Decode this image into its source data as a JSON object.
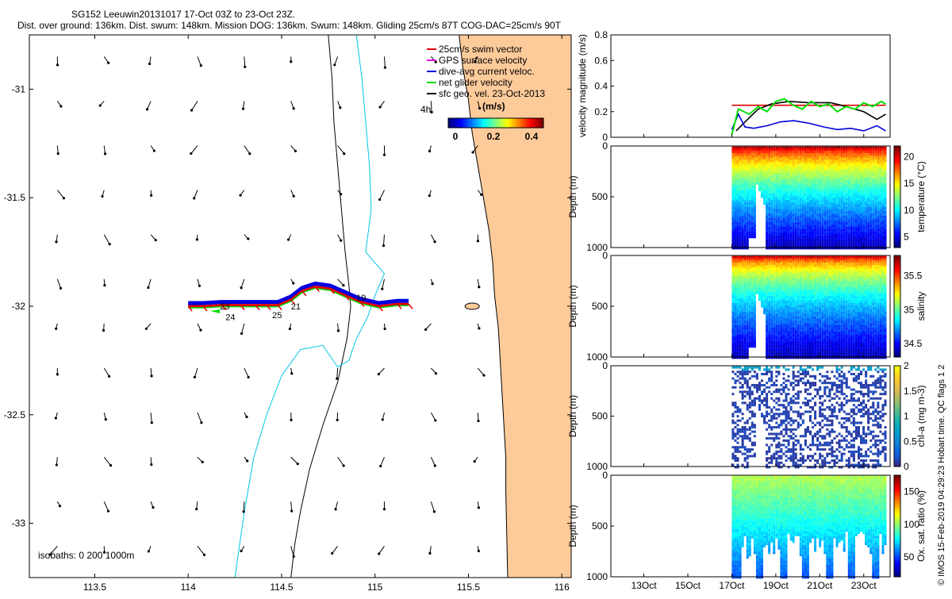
{
  "header": {
    "title": "SG152 Leeuwin20131017 17-Oct 03Z to 23-Oct 23Z.",
    "subtitle": "Dist. over ground: 136km. Dist. swum: 148km. Mission DOG: 136km. Swum: 148km. Gliding 25cm/s 87T COG-DAC=25cm/s 90T"
  },
  "colors": {
    "land": "#FDCA9A",
    "isobath_200": "#00C8E6",
    "isobath_1000": "#000000",
    "swim_vector": "#E00000",
    "gps_velocity": "#E000E0",
    "dac": "#0000E0",
    "net_velocity": "#00E000"
  },
  "chart_data": [
    {
      "type": "map",
      "xlim": [
        113.15,
        116.05
      ],
      "ylim": [
        -33.25,
        -30.75
      ],
      "xticks": [
        "113.5",
        "114",
        "114.5",
        "115",
        "115.5",
        "116"
      ],
      "xtick_values": [
        113.5,
        114,
        114.5,
        115,
        115.5,
        116
      ],
      "yticks": [
        "-31",
        "-31.5",
        "-32",
        "-32.5",
        "-33"
      ],
      "ytick_values": [
        -31,
        -31.5,
        -32,
        -32.5,
        -33
      ],
      "legend": {
        "placement": "top-right",
        "entries": [
          {
            "label": "25cm/s swim vector",
            "color": "#E00000"
          },
          {
            "label": "GPS surface velocity",
            "color": "#E000E0"
          },
          {
            "label": "dive-avg current veloc.",
            "color": "#0000E0"
          },
          {
            "label": "net glider velocity",
            "color": "#00E000"
          },
          {
            "label": "sfc geo. vel. 23-Oct-2013",
            "color": "#000000"
          }
        ]
      },
      "colorbar": {
        "title": "(m/s)",
        "ticks": [
          "0",
          "0.2",
          "0.4"
        ],
        "range": [
          0,
          0.5
        ]
      },
      "time_label": "4h",
      "isobath_note": "isobaths: 0   200  1000m",
      "track": {
        "lon": [
          115.18,
          115.12,
          115.02,
          114.92,
          114.84,
          114.76,
          114.68,
          114.61,
          114.55,
          114.48,
          114.42,
          114.36,
          114.28,
          114.18,
          114.08,
          114.0
        ],
        "lat": [
          -31.99,
          -31.99,
          -32.0,
          -31.98,
          -31.95,
          -31.92,
          -31.91,
          -31.93,
          -31.97,
          -31.995,
          -31.995,
          -31.995,
          -31.995,
          -31.995,
          -32.0,
          -32.0
        ],
        "day_labels": [
          {
            "text": "19",
            "lon": 114.9,
            "lat": -31.96
          },
          {
            "text": "21",
            "lon": 114.55,
            "lat": -32.0
          },
          {
            "text": "25",
            "lon": 114.45,
            "lat": -32.04
          },
          {
            "text": "24",
            "lon": 114.2,
            "lat": -32.05
          },
          {
            "text": "23",
            "lon": 114.17,
            "lat": -32.0
          }
        ]
      },
      "coastline": {
        "lon": [
          115.45,
          115.47,
          115.5,
          115.52,
          115.55,
          115.58,
          115.61,
          115.63,
          115.64,
          115.66,
          115.67,
          115.68,
          115.69,
          115.7,
          115.7,
          115.71
        ],
        "lat": [
          -30.75,
          -30.9,
          -31.05,
          -31.2,
          -31.35,
          -31.5,
          -31.65,
          -31.8,
          -31.95,
          -32.1,
          -32.25,
          -32.4,
          -32.55,
          -32.7,
          -32.85,
          -33.25
        ]
      },
      "isobath_200m": {
        "lon": [
          114.9,
          114.93,
          114.95,
          114.97,
          114.98,
          114.95,
          115.05,
          115.0,
          114.96,
          114.9,
          114.86,
          114.8,
          114.72,
          114.6,
          114.5,
          114.42,
          114.35,
          114.3,
          114.25
        ],
        "lat": [
          -30.75,
          -30.95,
          -31.15,
          -31.35,
          -31.55,
          -31.75,
          -31.85,
          -31.95,
          -32.05,
          -32.15,
          -32.25,
          -32.28,
          -32.18,
          -32.2,
          -32.32,
          -32.5,
          -32.7,
          -32.95,
          -33.25
        ]
      },
      "isobath_1000m": {
        "lon": [
          114.75,
          114.77,
          114.78,
          114.8,
          114.82,
          114.84,
          114.86,
          114.87,
          114.85,
          114.8,
          114.72,
          114.65,
          114.6,
          114.57,
          114.55
        ],
        "lat": [
          -30.75,
          -30.95,
          -31.15,
          -31.35,
          -31.55,
          -31.75,
          -31.9,
          -32.0,
          -32.15,
          -32.35,
          -32.55,
          -32.75,
          -32.95,
          -33.1,
          -33.25
        ]
      }
    },
    {
      "type": "line",
      "ylabel": "velocity magnitude (m/s)",
      "ylim": [
        0,
        0.8
      ],
      "yticks": [
        "0",
        "0.2",
        "0.4",
        "0.6",
        "0.8"
      ],
      "xlim": [
        11.5,
        24.2
      ],
      "series": [
        {
          "color": "#E00000",
          "x": [
            17.0,
            24.0
          ],
          "y": [
            0.25,
            0.25
          ]
        },
        {
          "color": "#000000",
          "x": [
            17.2,
            17.6,
            18.2,
            18.8,
            19.6,
            20.5,
            21.5,
            22.2,
            23.0,
            23.6,
            24.0
          ],
          "y": [
            0.05,
            0.12,
            0.22,
            0.26,
            0.28,
            0.27,
            0.27,
            0.24,
            0.2,
            0.14,
            0.18
          ]
        },
        {
          "color": "#0000E0",
          "x": [
            17.0,
            17.3,
            17.6,
            18.0,
            18.6,
            19.2,
            19.8,
            20.5,
            21.2,
            21.8,
            22.4,
            23.0,
            23.6,
            24.0
          ],
          "y": [
            0.06,
            0.18,
            0.08,
            0.07,
            0.09,
            0.12,
            0.13,
            0.11,
            0.08,
            0.06,
            0.07,
            0.05,
            0.09,
            0.05
          ]
        },
        {
          "color": "#00E000",
          "x": [
            17.0,
            17.3,
            17.8,
            18.2,
            18.6,
            19.0,
            19.4,
            19.8,
            20.2,
            20.6,
            21.0,
            21.4,
            21.8,
            22.2,
            22.6,
            23.0,
            23.4,
            23.8,
            24.0
          ],
          "y": [
            0.02,
            0.22,
            0.18,
            0.24,
            0.2,
            0.28,
            0.3,
            0.25,
            0.22,
            0.28,
            0.24,
            0.26,
            0.2,
            0.24,
            0.22,
            0.27,
            0.24,
            0.28,
            0.26
          ]
        }
      ]
    },
    {
      "type": "heatmap",
      "variable": "temperature",
      "ylabel": "Depth (m)",
      "ylim": [
        1000,
        0
      ],
      "yticks": [
        "0",
        "500",
        "1000"
      ],
      "colorbar_label": "temperature (°C)",
      "colorbar_ticks": [
        "5",
        "10",
        "15",
        "20"
      ],
      "crange": [
        3,
        22
      ]
    },
    {
      "type": "heatmap",
      "variable": "salinity",
      "ylabel": "Depth (m)",
      "ylim": [
        1000,
        0
      ],
      "yticks": [
        "0",
        "500",
        "1000"
      ],
      "colorbar_label": "salinity",
      "colorbar_ticks": [
        "34.5",
        "35",
        "35.5"
      ],
      "crange": [
        34.3,
        35.8
      ]
    },
    {
      "type": "scatter",
      "variable": "chl-a",
      "ylabel": "Depth (m)",
      "ylim": [
        1000,
        0
      ],
      "yticks": [
        "0",
        "500",
        "1000"
      ],
      "colorbar_label": "chl-a (mg m-3)",
      "colorbar_ticks": [
        "0",
        "0.5",
        "1",
        "1.5",
        "2"
      ],
      "crange": [
        0,
        2
      ]
    },
    {
      "type": "heatmap",
      "variable": "Ox. sat. ratio",
      "ylabel": "Depth (m)",
      "ylim": [
        1000,
        0
      ],
      "yticks": [
        "0",
        "500",
        "1000"
      ],
      "colorbar_label": "Ox. sat. ratio (%)",
      "colorbar_ticks": [
        "50",
        "100",
        "150"
      ],
      "crange": [
        20,
        175
      ],
      "xticks": [
        "13Oct",
        "15Oct",
        "17Oct",
        "19Oct",
        "21Oct",
        "23Oct"
      ],
      "xtick_values": [
        13,
        15,
        17,
        19,
        21,
        23
      ]
    }
  ],
  "credit": "© IMOS 15-Feb-2019 04:29:23 Hobart time. QC flags 1  2"
}
